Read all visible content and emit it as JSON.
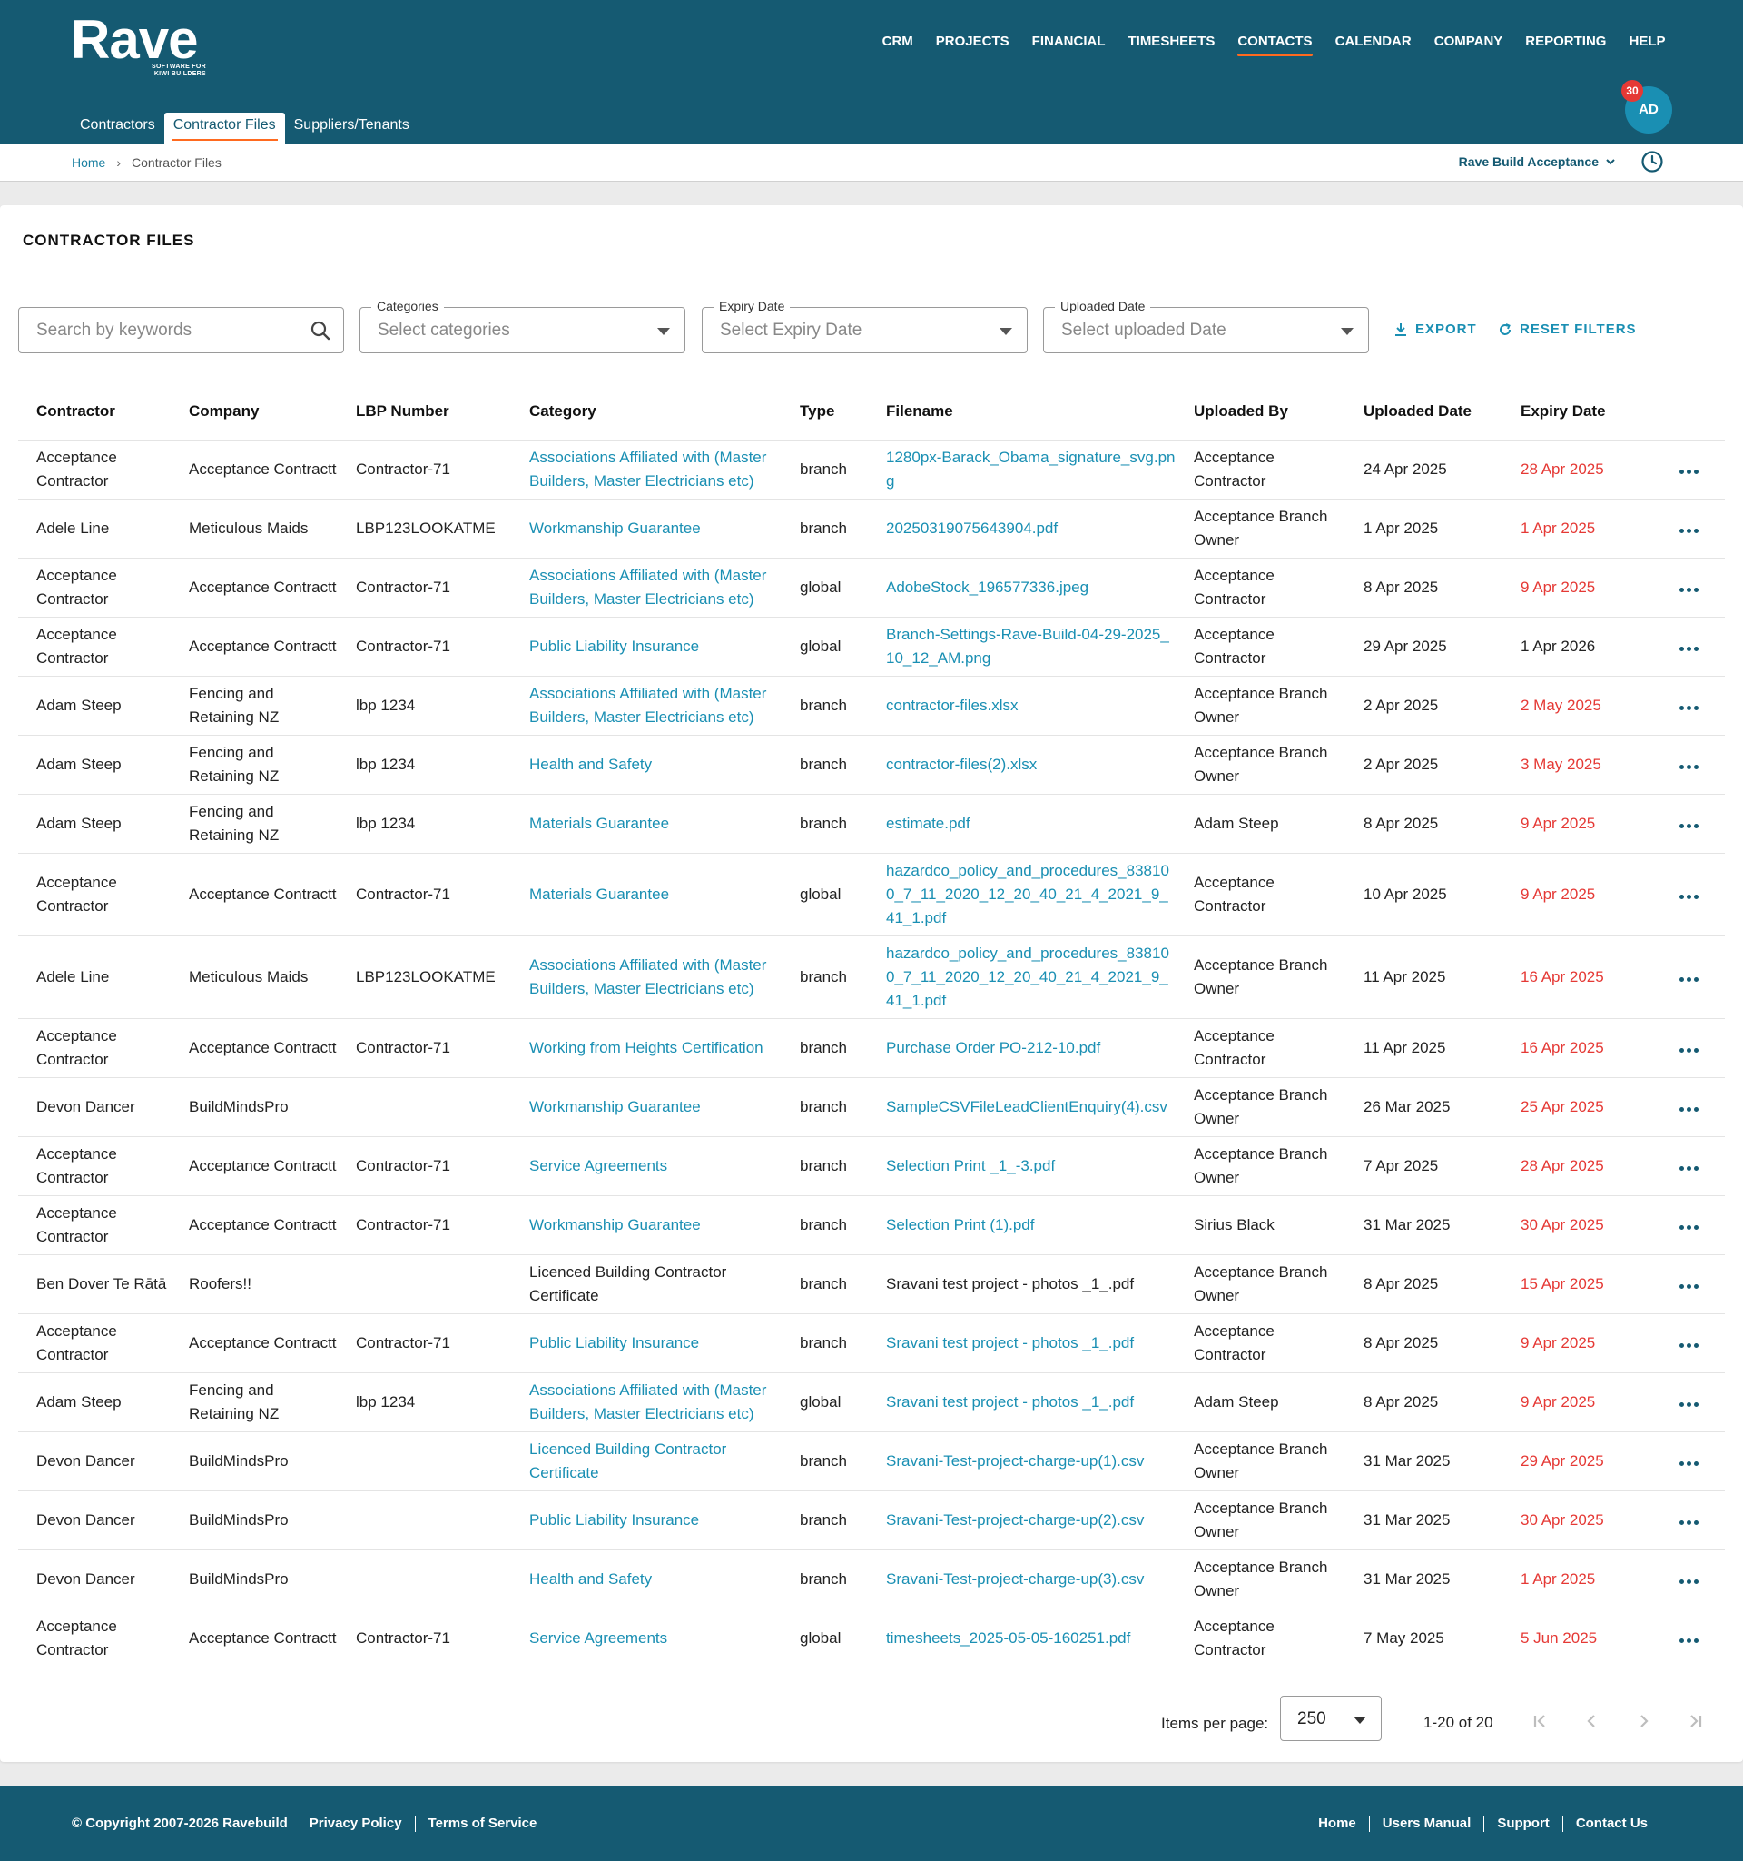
{
  "header": {
    "logo_word": "Rave",
    "logo_tag_line1": "SOFTWARE FOR",
    "logo_tag_line2": "KIWI BUILDERS",
    "nav": [
      "CRM",
      "PROJECTS",
      "FINANCIAL",
      "TIMESHEETS",
      "CONTACTS",
      "CALENDAR",
      "COMPANY",
      "REPORTING",
      "HELP"
    ],
    "active_nav": "CONTACTS",
    "subnav": [
      "Contractors",
      "Contractor Files",
      "Suppliers/Tenants"
    ],
    "active_subnav": "Contractor Files",
    "avatar_initials": "AD",
    "notification_count": "30"
  },
  "breadcrumb": {
    "home": "Home",
    "separator": "›",
    "current": "Contractor Files"
  },
  "branch_select": "Rave Build Acceptance",
  "page_title": "CONTRACTOR FILES",
  "filters": {
    "search_placeholder": "Search by keywords",
    "categories_label": "Categories",
    "categories_placeholder": "Select categories",
    "expiry_label": "Expiry Date",
    "expiry_placeholder": "Select Expiry Date",
    "uploaded_label": "Uploaded Date",
    "uploaded_placeholder": "Select uploaded Date",
    "export": "EXPORT",
    "reset": "RESET FILTERS"
  },
  "table": {
    "columns": [
      "Contractor",
      "Company",
      "LBP Number",
      "Category",
      "Type",
      "Filename",
      "Uploaded By",
      "Uploaded Date",
      "Expiry Date"
    ],
    "rows": [
      {
        "contractor": "Acceptance Contractor",
        "company": "Acceptance Contractt",
        "lbp": "Contractor-71",
        "category": "Associations Affiliated with (Master Builders, Master Electricians etc)",
        "type": "branch",
        "filename": "1280px-Barack_Obama_signature_svg.png",
        "uploaded_by": "Acceptance Contractor",
        "uploaded_date": "24 Apr 2025",
        "expiry": "28 Apr 2025",
        "expired": true
      },
      {
        "contractor": "Adele Line",
        "company": "Meticulous Maids",
        "lbp": "LBP123LOOKATME",
        "category": "Workmanship Guarantee",
        "type": "branch",
        "filename": "20250319075643904.pdf",
        "uploaded_by": "Acceptance Branch Owner",
        "uploaded_date": "1 Apr 2025",
        "expiry": "1 Apr 2025",
        "expired": true
      },
      {
        "contractor": "Acceptance Contractor",
        "company": "Acceptance Contractt",
        "lbp": "Contractor-71",
        "category": "Associations Affiliated with (Master Builders, Master Electricians etc)",
        "type": "global",
        "filename": "AdobeStock_196577336.jpeg",
        "uploaded_by": "Acceptance Contractor",
        "uploaded_date": "8 Apr 2025",
        "expiry": "9 Apr 2025",
        "expired": true
      },
      {
        "contractor": "Acceptance Contractor",
        "company": "Acceptance Contractt",
        "lbp": "Contractor-71",
        "category": "Public Liability Insurance",
        "type": "global",
        "filename": "Branch-Settings-Rave-Build-04-29-2025_10_12_AM.png",
        "uploaded_by": "Acceptance Contractor",
        "uploaded_date": "29 Apr 2025",
        "expiry": "1 Apr 2026",
        "expired": false
      },
      {
        "contractor": "Adam Steep",
        "company": "Fencing and Retaining NZ",
        "lbp": "lbp 1234",
        "category": "Associations Affiliated with (Master Builders, Master Electricians etc)",
        "type": "branch",
        "filename": "contractor-files.xlsx",
        "uploaded_by": "Acceptance Branch Owner",
        "uploaded_date": "2 Apr 2025",
        "expiry": "2 May 2025",
        "expired": true
      },
      {
        "contractor": "Adam Steep",
        "company": "Fencing and Retaining NZ",
        "lbp": "lbp 1234",
        "category": "Health and Safety",
        "type": "branch",
        "filename": "contractor-files(2).xlsx",
        "uploaded_by": "Acceptance Branch Owner",
        "uploaded_date": "2 Apr 2025",
        "expiry": "3 May 2025",
        "expired": true
      },
      {
        "contractor": "Adam Steep",
        "company": "Fencing and Retaining NZ",
        "lbp": "lbp 1234",
        "category": "Materials Guarantee",
        "type": "branch",
        "filename": "estimate.pdf",
        "uploaded_by": "Adam Steep",
        "uploaded_date": "8 Apr 2025",
        "expiry": "9 Apr 2025",
        "expired": true
      },
      {
        "contractor": "Acceptance Contractor",
        "company": "Acceptance Contractt",
        "lbp": "Contractor-71",
        "category": "Materials Guarantee",
        "type": "global",
        "filename": "hazardco_policy_and_procedures_838100_7_11_2020_12_20_40_21_4_2021_9_41_1.pdf",
        "uploaded_by": "Acceptance Contractor",
        "uploaded_date": "10 Apr 2025",
        "expiry": "9 Apr 2025",
        "expired": true
      },
      {
        "contractor": "Adele Line",
        "company": "Meticulous Maids",
        "lbp": "LBP123LOOKATME",
        "category": "Associations Affiliated with (Master Builders, Master Electricians etc)",
        "type": "branch",
        "filename": "hazardco_policy_and_procedures_838100_7_11_2020_12_20_40_21_4_2021_9_41_1.pdf",
        "uploaded_by": "Acceptance Branch Owner",
        "uploaded_date": "11 Apr 2025",
        "expiry": "16 Apr 2025",
        "expired": true
      },
      {
        "contractor": "Acceptance Contractor",
        "company": "Acceptance Contractt",
        "lbp": "Contractor-71",
        "category": "Working from Heights Certification",
        "type": "branch",
        "filename": "Purchase Order PO-212-10.pdf",
        "uploaded_by": "Acceptance Contractor",
        "uploaded_date": "11 Apr 2025",
        "expiry": "16 Apr 2025",
        "expired": true
      },
      {
        "contractor": "Devon Dancer",
        "company": "BuildMindsPro",
        "lbp": "",
        "category": "Workmanship Guarantee",
        "type": "branch",
        "filename": "SampleCSVFileLeadClientEnquiry(4).csv",
        "uploaded_by": "Acceptance Branch Owner",
        "uploaded_date": "26 Mar 2025",
        "expiry": "25 Apr 2025",
        "expired": true
      },
      {
        "contractor": "Acceptance Contractor",
        "company": "Acceptance Contractt",
        "lbp": "Contractor-71",
        "category": "Service Agreements",
        "type": "branch",
        "filename": "Selection Print _1_-3.pdf",
        "uploaded_by": "Acceptance Branch Owner",
        "uploaded_date": "7 Apr 2025",
        "expiry": "28 Apr 2025",
        "expired": true
      },
      {
        "contractor": "Acceptance Contractor",
        "company": "Acceptance Contractt",
        "lbp": "Contractor-71",
        "category": "Workmanship Guarantee",
        "type": "branch",
        "filename": "Selection Print (1).pdf",
        "uploaded_by": "Sirius Black",
        "uploaded_date": "31 Mar 2025",
        "expiry": "30 Apr 2025",
        "expired": true
      },
      {
        "contractor": "Ben Dover Te Rātā",
        "company": "Roofers!!",
        "lbp": "",
        "category": "Licenced Building Contractor Certificate",
        "type": "branch",
        "filename": "Sravani test project - photos _1_.pdf",
        "uploaded_by": "Acceptance Branch Owner",
        "uploaded_date": "8 Apr 2025",
        "expiry": "15 Apr 2025",
        "expired": true,
        "plain": true
      },
      {
        "contractor": "Acceptance Contractor",
        "company": "Acceptance Contractt",
        "lbp": "Contractor-71",
        "category": "Public Liability Insurance",
        "type": "branch",
        "filename": "Sravani test project - photos _1_.pdf",
        "uploaded_by": "Acceptance Contractor",
        "uploaded_date": "8 Apr 2025",
        "expiry": "9 Apr 2025",
        "expired": true
      },
      {
        "contractor": "Adam Steep",
        "company": "Fencing and Retaining NZ",
        "lbp": "lbp 1234",
        "category": "Associations Affiliated with (Master Builders, Master Electricians etc)",
        "type": "global",
        "filename": "Sravani test project - photos _1_.pdf",
        "uploaded_by": "Adam Steep",
        "uploaded_date": "8 Apr 2025",
        "expiry": "9 Apr 2025",
        "expired": true
      },
      {
        "contractor": "Devon Dancer",
        "company": "BuildMindsPro",
        "lbp": "",
        "category": "Licenced Building Contractor Certificate",
        "type": "branch",
        "filename": "Sravani-Test-project-charge-up(1).csv",
        "uploaded_by": "Acceptance Branch Owner",
        "uploaded_date": "31 Mar 2025",
        "expiry": "29 Apr 2025",
        "expired": true
      },
      {
        "contractor": "Devon Dancer",
        "company": "BuildMindsPro",
        "lbp": "",
        "category": "Public Liability Insurance",
        "type": "branch",
        "filename": "Sravani-Test-project-charge-up(2).csv",
        "uploaded_by": "Acceptance Branch Owner",
        "uploaded_date": "31 Mar 2025",
        "expiry": "30 Apr 2025",
        "expired": true
      },
      {
        "contractor": "Devon Dancer",
        "company": "BuildMindsPro",
        "lbp": "",
        "category": "Health and Safety",
        "type": "branch",
        "filename": "Sravani-Test-project-charge-up(3).csv",
        "uploaded_by": "Acceptance Branch Owner",
        "uploaded_date": "31 Mar 2025",
        "expiry": "1 Apr 2025",
        "expired": true
      },
      {
        "contractor": "Acceptance Contractor",
        "company": "Acceptance Contractt",
        "lbp": "Contractor-71",
        "category": "Service Agreements",
        "type": "global",
        "filename": "timesheets_2025-05-05-160251.pdf",
        "uploaded_by": "Acceptance Contractor",
        "uploaded_date": "7 May 2025",
        "expiry": "5 Jun 2025",
        "expired": true
      }
    ]
  },
  "pagination": {
    "items_per_page_label": "Items per page:",
    "items_per_page": "250",
    "range": "1-20 of 20"
  },
  "footer": {
    "copyright": "© Copyright 2007-2026 Ravebuild",
    "left_links": [
      "Privacy Policy",
      "Terms of Service"
    ],
    "right_links": [
      "Home",
      "Users Manual",
      "Support",
      "Contact Us"
    ]
  },
  "colors": {
    "brand": "#155a72",
    "accent": "#1a8fb3",
    "active_underline": "#ff6a1f",
    "expired": "#e53935"
  }
}
